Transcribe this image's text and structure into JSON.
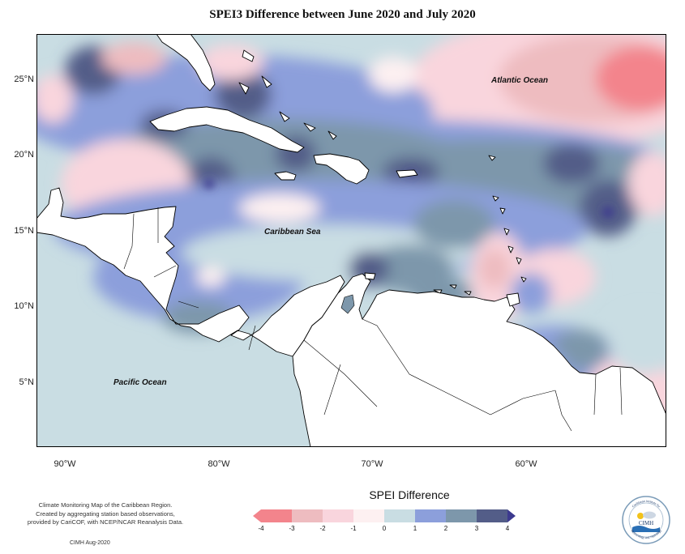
{
  "title": "SPEI3 Difference between June 2020 and July 2020",
  "map": {
    "lon_range": [
      -92,
      -51
    ],
    "lat_range": [
      1.5,
      28
    ],
    "lat_ticks": [
      "25°N",
      "20°N",
      "15°N",
      "10°N",
      "5°N"
    ],
    "lon_ticks": [
      "90°W",
      "80°W",
      "70°W",
      "60°W"
    ],
    "labels": {
      "atlantic": "Atlantic Ocean",
      "caribbean": "Caribbean Sea",
      "pacific": "Pacific Ocean"
    }
  },
  "legend": {
    "title": "SPEI Difference",
    "tick_labels": [
      "-4",
      "-3",
      "-2",
      "-1",
      "0",
      "1",
      "2",
      "3",
      "4"
    ],
    "colors": [
      "#f3848c",
      "#eebcc0",
      "#f9d5dd",
      "#fdf0f1",
      "#c9dde3",
      "#8c9fdb",
      "#7d97ab",
      "#535d88",
      "#3c3a8f"
    ]
  },
  "footer": {
    "line1": "Climate Monitoring Map of the Caribbean Region.",
    "line2": "Created by aggregating station based observations,",
    "line3": "provided by CariCOF, with NCEP/NCAR Reanalysis Data.",
    "date": "CIMH Aug-2020"
  },
  "logo": {
    "name": "CIMH",
    "ring_top": "Caribbean Institute for",
    "ring_bottom": "Meteorology and Hydrology"
  }
}
